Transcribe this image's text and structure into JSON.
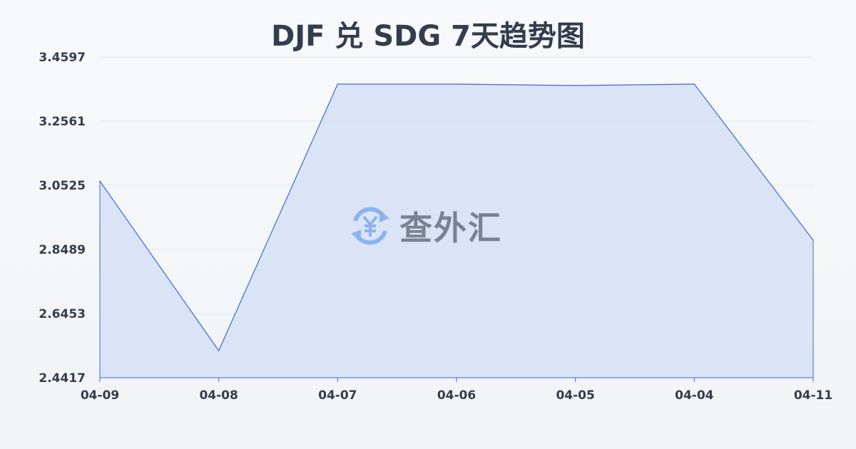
{
  "chart_data": {
    "type": "area",
    "title": "DJF 兑 SDG 7天趋势图",
    "categories": [
      "04-09",
      "04-08",
      "04-07",
      "04-06",
      "04-05",
      "04-04",
      "04-11"
    ],
    "values": [
      3.0661,
      2.5277,
      3.3737,
      3.3737,
      3.3692,
      3.3737,
      2.8783
    ],
    "yticks": [
      "3.4597",
      "3.2561",
      "3.0525",
      "2.8489",
      "2.6453",
      "2.4417"
    ],
    "ylim": [
      2.4417,
      3.4597
    ],
    "grid": true,
    "colors": {
      "line": "#3b6bd1",
      "fill": "#d6e1f6",
      "grid": "#e3e6ea",
      "text": "#333d4d"
    }
  },
  "watermark": {
    "text": "查外汇",
    "icon": "yen-exchange-icon"
  }
}
